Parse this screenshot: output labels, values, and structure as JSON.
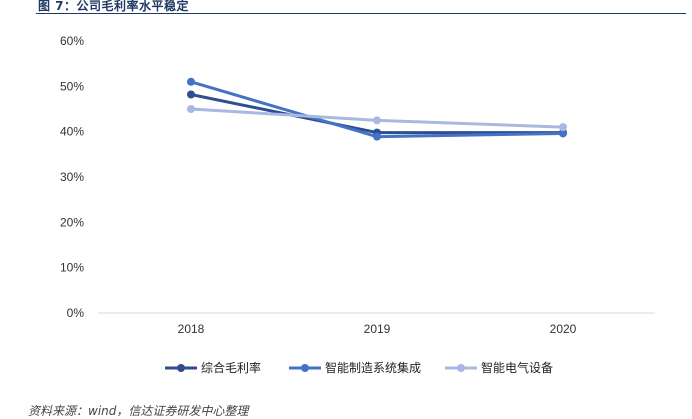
{
  "figure_title": "图 7：公司毛利率水平稳定",
  "source_note": "资料来源：wind，信达证券研发中心整理",
  "chart_data": {
    "type": "line",
    "categories": [
      "2018",
      "2019",
      "2020"
    ],
    "y_ticks": [
      "0%",
      "10%",
      "20%",
      "30%",
      "40%",
      "50%",
      "60%"
    ],
    "ylim": [
      0,
      60
    ],
    "y_unit": "%",
    "grid": false,
    "legend_position": "bottom",
    "series": [
      {
        "name": "综合毛利率",
        "values": [
          48.2,
          39.8,
          39.8
        ],
        "color": "#2e4e8f"
      },
      {
        "name": "智能制造系统集成",
        "values": [
          51.0,
          38.9,
          39.6
        ],
        "color": "#4472c4"
      },
      {
        "name": "智能电气设备",
        "values": [
          45.0,
          42.5,
          41.0
        ],
        "color": "#a9b8e0"
      }
    ]
  }
}
